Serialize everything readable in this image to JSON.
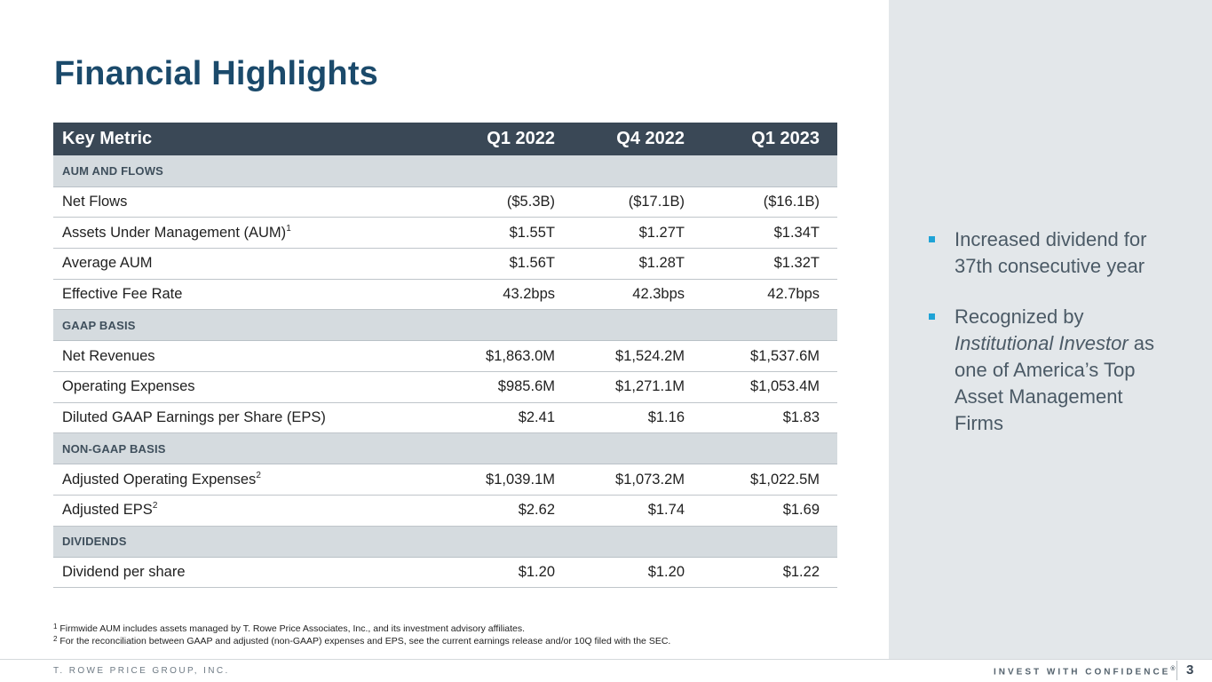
{
  "title": "Financial Highlights",
  "table": {
    "headers": [
      "Key Metric",
      "Q1 2022",
      "Q4 2022",
      "Q1 2023"
    ],
    "sections": {
      "aum": {
        "heading": "AUM AND FLOWS",
        "rows": [
          {
            "label": "Net Flows",
            "sup": "",
            "values": [
              "($5.3B)",
              "($17.1B)",
              "($16.1B)"
            ]
          },
          {
            "label": "Assets Under Management (AUM)",
            "sup": "1",
            "values": [
              "$1.55T",
              "$1.27T",
              "$1.34T"
            ]
          },
          {
            "label": "Average AUM",
            "sup": "",
            "values": [
              "$1.56T",
              "$1.28T",
              "$1.32T"
            ]
          },
          {
            "label": "Effective Fee Rate",
            "sup": "",
            "values": [
              "43.2bps",
              "42.3bps",
              "42.7bps"
            ]
          }
        ]
      },
      "gaap": {
        "heading": "GAAP BASIS",
        "rows": [
          {
            "label": "Net Revenues",
            "sup": "",
            "values": [
              "$1,863.0M",
              "$1,524.2M",
              "$1,537.6M"
            ]
          },
          {
            "label": "Operating Expenses",
            "sup": "",
            "values": [
              "$985.6M",
              "$1,271.1M",
              "$1,053.4M"
            ]
          },
          {
            "label": "Diluted GAAP Earnings per Share (EPS)",
            "sup": "",
            "values": [
              "$2.41",
              "$1.16",
              "$1.83"
            ]
          }
        ]
      },
      "nongaap": {
        "heading": "NON-GAAP BASIS",
        "rows": [
          {
            "label": "Adjusted Operating Expenses",
            "sup": "2",
            "values": [
              "$1,039.1M",
              "$1,073.2M",
              "$1,022.5M"
            ]
          },
          {
            "label": "Adjusted EPS",
            "sup": "2",
            "values": [
              "$2.62",
              "$1.74",
              "$1.69"
            ]
          }
        ]
      },
      "dividends": {
        "heading": "DIVIDENDS",
        "rows": [
          {
            "label": "Dividend per share",
            "sup": "",
            "values": [
              "$1.20",
              "$1.20",
              "$1.22"
            ]
          }
        ]
      }
    }
  },
  "highlights": {
    "item1": "Increased dividend for 37th consecutive year",
    "item2": {
      "pre": "Recognized by ",
      "em1": "Institutional Investor",
      "post": " as one of America’s Top Asset Management Firms"
    }
  },
  "footnotes": {
    "note1": {
      "marker": "1",
      "text": " Firmwide AUM includes assets managed by T. Rowe Price Associates, Inc., and its investment advisory affiliates."
    },
    "note2": {
      "marker": "2",
      "text": " For the reconciliation between GAAP and adjusted (non-GAAP) expenses and EPS, see the current earnings release and/or 10Q filed with the SEC."
    }
  },
  "footer": {
    "company": "T. ROWE PRICE GROUP, INC.",
    "tagline": "INVEST WITH CONFIDENCE",
    "tagline_mark": "®",
    "page": "3"
  }
}
